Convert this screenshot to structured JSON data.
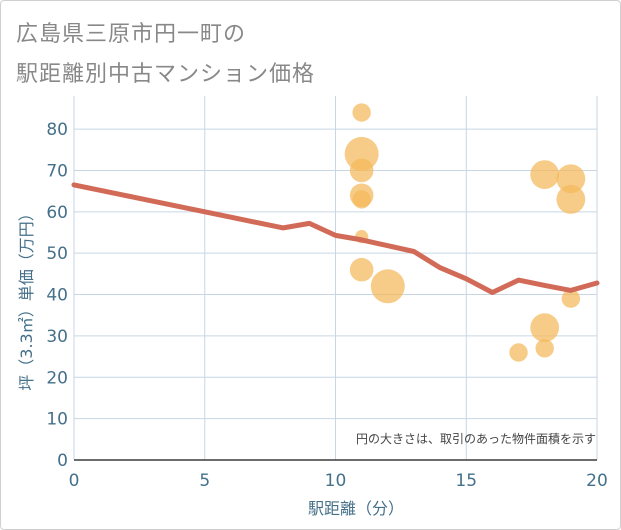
{
  "title_line1": "広島県三原市円一町の",
  "title_line2": "駅距離別中古マンション価格",
  "chart_data": {
    "type": "scatter",
    "title": "広島県三原市円一町の駅距離別中古マンション価格",
    "xlabel": "駅距離（分）",
    "ylabel": "坪（3.3㎡）単価（万円）",
    "xlim": [
      0,
      20
    ],
    "ylim": [
      0,
      88
    ],
    "xticks": [
      0,
      5,
      10,
      15,
      20
    ],
    "yticks": [
      0,
      10,
      20,
      30,
      40,
      50,
      60,
      70,
      80
    ],
    "grid": true,
    "note": "円の大きさは、取引のあった物件面積を示す",
    "points": [
      {
        "x": 11,
        "y": 84,
        "size": 2
      },
      {
        "x": 11,
        "y": 74,
        "size": 5
      },
      {
        "x": 11,
        "y": 70,
        "size": 3
      },
      {
        "x": 11,
        "y": 64,
        "size": 3
      },
      {
        "x": 11,
        "y": 63,
        "size": 2
      },
      {
        "x": 11,
        "y": 54,
        "size": 1
      },
      {
        "x": 11,
        "y": 46,
        "size": 3
      },
      {
        "x": 12,
        "y": 42,
        "size": 5
      },
      {
        "x": 17,
        "y": 26,
        "size": 2
      },
      {
        "x": 18,
        "y": 69,
        "size": 4
      },
      {
        "x": 18,
        "y": 32,
        "size": 4
      },
      {
        "x": 18,
        "y": 27,
        "size": 2
      },
      {
        "x": 19,
        "y": 68,
        "size": 4
      },
      {
        "x": 19,
        "y": 63,
        "size": 4
      },
      {
        "x": 19,
        "y": 39,
        "size": 2
      }
    ],
    "trend": {
      "x": [
        0,
        1,
        2,
        3,
        4,
        5,
        6,
        7,
        8,
        9,
        10,
        11,
        12,
        13,
        14,
        15,
        16,
        17,
        18,
        19,
        20
      ],
      "y": [
        66.5,
        65.2,
        63.9,
        62.6,
        61.3,
        60.0,
        58.7,
        57.4,
        56.1,
        57.2,
        54.3,
        53.2,
        51.8,
        50.4,
        46.5,
        43.8,
        40.5,
        43.5,
        42.2,
        41.0,
        42.8
      ]
    },
    "colors": {
      "points": "#f4b95a",
      "trend": "#d26a58",
      "axis_text": "#45708a",
      "grid": "#c8d6e3"
    }
  }
}
